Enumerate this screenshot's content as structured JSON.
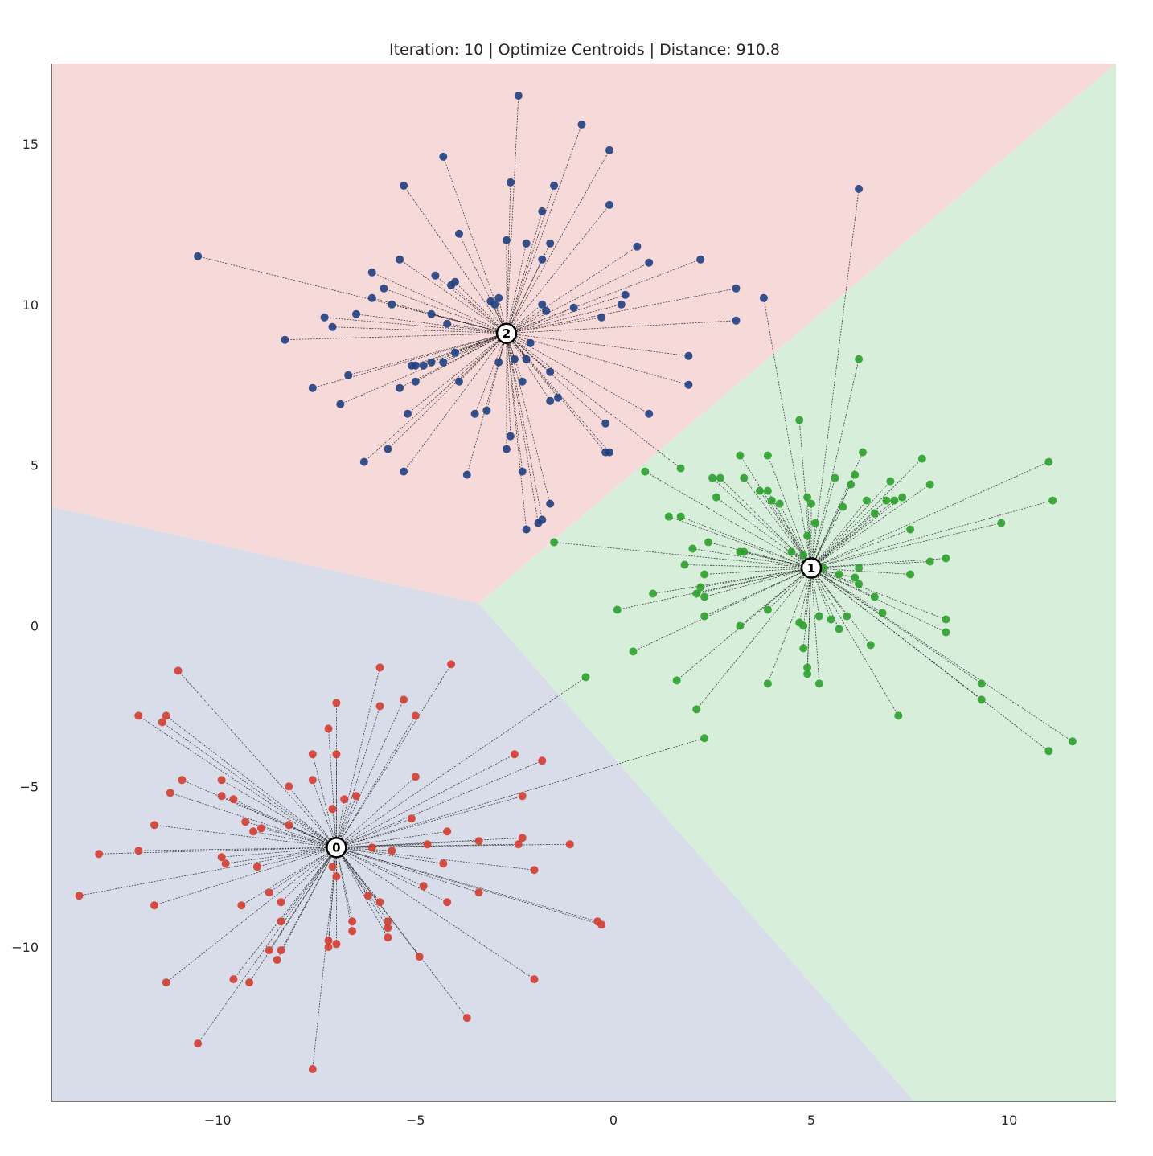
{
  "chart_data": {
    "type": "scatter",
    "title": "Iteration: 10 | Optimize Centroids | Distance: 910.8",
    "xlabel": "",
    "ylabel": "",
    "xlim": [
      -14.2,
      12.7
    ],
    "ylim": [
      -14.8,
      17.5
    ],
    "xticks": [
      -10,
      -5,
      0,
      5,
      10
    ],
    "yticks": [
      -10,
      -5,
      0,
      5,
      10,
      15
    ],
    "xtick_labels": [
      "−10",
      "−5",
      "0",
      "5",
      "10"
    ],
    "ytick_labels": [
      "−10",
      "−5",
      "0",
      "5",
      "10",
      "15"
    ],
    "grid": false,
    "colors": {
      "cluster_0": "#d43d33",
      "cluster_1": "#2ca02c",
      "cluster_2": "#1f3f7f",
      "region_0": "#d8dde9",
      "region_1": "#d7eedb",
      "region_2": "#f6dada",
      "line": "#222222"
    },
    "voronoi_regions": [
      {
        "cluster": 0,
        "polygon": [
          [
            -14.2,
            3.7
          ],
          [
            -3.4,
            0.7
          ],
          [
            7.6,
            -14.8
          ],
          [
            -14.2,
            -14.8
          ]
        ]
      },
      {
        "cluster": 1,
        "polygon": [
          [
            -3.4,
            0.7
          ],
          [
            12.7,
            17.5
          ],
          [
            12.7,
            -14.8
          ],
          [
            7.6,
            -14.8
          ]
        ]
      },
      {
        "cluster": 2,
        "polygon": [
          [
            -14.2,
            17.5
          ],
          [
            12.7,
            17.5
          ],
          [
            -3.4,
            0.7
          ],
          [
            -14.2,
            3.7
          ]
        ]
      }
    ],
    "centroids": [
      {
        "label": "0",
        "x": -7.0,
        "y": -6.9
      },
      {
        "label": "1",
        "x": 5.0,
        "y": 1.8
      },
      {
        "label": "2",
        "x": -2.7,
        "y": 9.1
      }
    ],
    "series": [
      {
        "cluster": 0,
        "points": [
          [
            -11.0,
            -1.4
          ],
          [
            -12.0,
            -2.8
          ],
          [
            -11.3,
            -2.8
          ],
          [
            -11.4,
            -3.0
          ],
          [
            -13.0,
            -7.1
          ],
          [
            -12.0,
            -7.0
          ],
          [
            -13.5,
            -8.4
          ],
          [
            -11.6,
            -8.7
          ],
          [
            -11.6,
            -6.2
          ],
          [
            -11.2,
            -5.2
          ],
          [
            -10.9,
            -4.8
          ],
          [
            -9.9,
            -4.8
          ],
          [
            -9.9,
            -5.3
          ],
          [
            -9.6,
            -5.4
          ],
          [
            -9.3,
            -6.1
          ],
          [
            -9.1,
            -6.4
          ],
          [
            -8.9,
            -6.3
          ],
          [
            -8.2,
            -5.0
          ],
          [
            -8.2,
            -6.2
          ],
          [
            -9.9,
            -7.2
          ],
          [
            -9.8,
            -7.4
          ],
          [
            -9.0,
            -7.5
          ],
          [
            -8.7,
            -8.3
          ],
          [
            -8.4,
            -8.6
          ],
          [
            -9.4,
            -8.7
          ],
          [
            -8.4,
            -9.2
          ],
          [
            -8.7,
            -10.1
          ],
          [
            -8.4,
            -10.1
          ],
          [
            -8.5,
            -10.4
          ],
          [
            -9.2,
            -11.1
          ],
          [
            -9.6,
            -11.0
          ],
          [
            -11.3,
            -11.1
          ],
          [
            -10.5,
            -13.0
          ],
          [
            -7.6,
            -13.8
          ],
          [
            -7.6,
            -4.0
          ],
          [
            -7.6,
            -4.8
          ],
          [
            -7.2,
            -3.2
          ],
          [
            -7.0,
            -2.4
          ],
          [
            -7.0,
            -4.0
          ],
          [
            -7.1,
            -5.7
          ],
          [
            -6.8,
            -5.4
          ],
          [
            -6.5,
            -5.3
          ],
          [
            -7.1,
            -7.5
          ],
          [
            -7.0,
            -7.8
          ],
          [
            -7.0,
            -9.9
          ],
          [
            -7.2,
            -9.8
          ],
          [
            -7.2,
            -10.0
          ],
          [
            -6.6,
            -9.2
          ],
          [
            -6.6,
            -9.5
          ],
          [
            -5.7,
            -9.2
          ],
          [
            -5.7,
            -9.4
          ],
          [
            -5.7,
            -9.7
          ],
          [
            -6.2,
            -8.4
          ],
          [
            -5.9,
            -8.6
          ],
          [
            -6.1,
            -6.9
          ],
          [
            -5.6,
            -7.0
          ],
          [
            -5.9,
            -1.3
          ],
          [
            -5.9,
            -2.5
          ],
          [
            -5.3,
            -2.3
          ],
          [
            -5.0,
            -2.8
          ],
          [
            -5.0,
            -4.7
          ],
          [
            -5.1,
            -6.0
          ],
          [
            -4.7,
            -6.8
          ],
          [
            -4.2,
            -6.4
          ],
          [
            -4.2,
            -8.6
          ],
          [
            -4.8,
            -8.1
          ],
          [
            -4.3,
            -7.4
          ],
          [
            -4.9,
            -10.3
          ],
          [
            -3.7,
            -12.2
          ],
          [
            -4.1,
            -1.2
          ],
          [
            -2.5,
            -4.0
          ],
          [
            -1.8,
            -4.2
          ],
          [
            -2.3,
            -5.3
          ],
          [
            -3.4,
            -6.7
          ],
          [
            -2.3,
            -6.6
          ],
          [
            -2.4,
            -6.8
          ],
          [
            -1.1,
            -6.8
          ],
          [
            -2.0,
            -7.6
          ],
          [
            -3.4,
            -8.3
          ],
          [
            -2.0,
            -11.0
          ],
          [
            -0.4,
            -9.2
          ],
          [
            -0.3,
            -9.3
          ],
          [
            -0.7,
            -1.6
          ],
          [
            2.3,
            -3.5
          ]
        ]
      },
      {
        "cluster": 1,
        "points": [
          [
            4.7,
            6.4
          ],
          [
            3.2,
            5.3
          ],
          [
            3.9,
            5.3
          ],
          [
            2.7,
            4.6
          ],
          [
            2.5,
            4.6
          ],
          [
            3.3,
            4.6
          ],
          [
            3.7,
            4.2
          ],
          [
            3.9,
            4.2
          ],
          [
            4.0,
            3.9
          ],
          [
            4.2,
            3.8
          ],
          [
            2.6,
            4.0
          ],
          [
            4.9,
            4.0
          ],
          [
            5.0,
            3.8
          ],
          [
            5.6,
            4.6
          ],
          [
            6.1,
            4.7
          ],
          [
            6.3,
            5.4
          ],
          [
            6.0,
            4.4
          ],
          [
            5.8,
            3.7
          ],
          [
            6.4,
            3.9
          ],
          [
            6.6,
            3.5
          ],
          [
            6.9,
            3.9
          ],
          [
            7.1,
            3.9
          ],
          [
            7.3,
            4.0
          ],
          [
            7.0,
            4.5
          ],
          [
            7.5,
            3.0
          ],
          [
            7.8,
            5.2
          ],
          [
            8.0,
            4.4
          ],
          [
            11.0,
            5.1
          ],
          [
            11.1,
            3.9
          ],
          [
            9.8,
            3.2
          ],
          [
            8.0,
            2.0
          ],
          [
            8.4,
            2.1
          ],
          [
            7.5,
            1.6
          ],
          [
            6.1,
            1.5
          ],
          [
            6.2,
            1.8
          ],
          [
            5.3,
            1.8
          ],
          [
            5.7,
            1.6
          ],
          [
            6.2,
            1.3
          ],
          [
            6.6,
            0.9
          ],
          [
            6.8,
            0.4
          ],
          [
            6.5,
            -0.6
          ],
          [
            7.2,
            -2.8
          ],
          [
            8.4,
            0.2
          ],
          [
            8.4,
            -0.2
          ],
          [
            9.3,
            -1.8
          ],
          [
            9.3,
            -2.3
          ],
          [
            11.0,
            -3.9
          ],
          [
            11.6,
            -3.6
          ],
          [
            5.2,
            0.3
          ],
          [
            5.5,
            0.2
          ],
          [
            5.7,
            -0.1
          ],
          [
            5.9,
            0.3
          ],
          [
            5.2,
            -1.8
          ],
          [
            4.8,
            -0.7
          ],
          [
            4.9,
            -1.3
          ],
          [
            4.9,
            -1.5
          ],
          [
            4.8,
            0.0
          ],
          [
            4.7,
            0.1
          ],
          [
            3.9,
            -1.8
          ],
          [
            3.9,
            0.5
          ],
          [
            3.2,
            0.0
          ],
          [
            2.3,
            0.3
          ],
          [
            2.1,
            -2.6
          ],
          [
            1.6,
            -1.7
          ],
          [
            2.3,
            0.9
          ],
          [
            2.2,
            1.2
          ],
          [
            2.3,
            1.6
          ],
          [
            1.8,
            1.9
          ],
          [
            2.0,
            2.4
          ],
          [
            2.4,
            2.6
          ],
          [
            3.2,
            2.3
          ],
          [
            3.3,
            2.3
          ],
          [
            1.4,
            3.4
          ],
          [
            1.7,
            3.4
          ],
          [
            0.8,
            4.8
          ],
          [
            -1.5,
            2.6
          ],
          [
            0.1,
            0.5
          ],
          [
            1.0,
            1.0
          ],
          [
            0.5,
            -0.8
          ],
          [
            2.1,
            1.0
          ],
          [
            4.5,
            2.3
          ],
          [
            4.8,
            2.2
          ],
          [
            4.9,
            2.8
          ],
          [
            5.1,
            3.2
          ],
          [
            6.2,
            8.3
          ],
          [
            3.8,
            10.2
          ],
          [
            6.2,
            13.6
          ]
        ]
      },
      {
        "cluster": 2,
        "points": [
          [
            -2.4,
            16.5
          ],
          [
            -0.8,
            15.6
          ],
          [
            -4.3,
            14.6
          ],
          [
            -2.6,
            13.8
          ],
          [
            -0.1,
            14.8
          ],
          [
            -5.3,
            13.7
          ],
          [
            -1.5,
            13.7
          ],
          [
            -0.1,
            13.1
          ],
          [
            -1.8,
            12.9
          ],
          [
            -3.9,
            12.2
          ],
          [
            -2.7,
            12.0
          ],
          [
            -2.2,
            11.9
          ],
          [
            -1.6,
            11.9
          ],
          [
            0.6,
            11.8
          ],
          [
            0.9,
            11.3
          ],
          [
            2.2,
            11.4
          ],
          [
            -1.8,
            11.4
          ],
          [
            -5.4,
            11.4
          ],
          [
            -6.1,
            11.0
          ],
          [
            -4.5,
            10.9
          ],
          [
            -4.1,
            10.6
          ],
          [
            -4.0,
            10.7
          ],
          [
            -5.8,
            10.5
          ],
          [
            -6.1,
            10.2
          ],
          [
            -5.6,
            10.0
          ],
          [
            -3.1,
            10.1
          ],
          [
            -3.0,
            10.0
          ],
          [
            -2.9,
            10.2
          ],
          [
            -1.8,
            10.0
          ],
          [
            -1.7,
            9.8
          ],
          [
            -1.0,
            9.9
          ],
          [
            0.2,
            10.0
          ],
          [
            0.3,
            10.3
          ],
          [
            3.1,
            10.5
          ],
          [
            3.1,
            9.5
          ],
          [
            -0.3,
            9.6
          ],
          [
            -4.6,
            9.7
          ],
          [
            -6.5,
            9.7
          ],
          [
            -7.3,
            9.6
          ],
          [
            -7.1,
            9.3
          ],
          [
            -8.3,
            8.9
          ],
          [
            -10.5,
            11.5
          ],
          [
            -4.2,
            9.4
          ],
          [
            -4.0,
            8.5
          ],
          [
            -4.3,
            8.2
          ],
          [
            -4.6,
            8.2
          ],
          [
            -4.8,
            8.1
          ],
          [
            -5.0,
            8.1
          ],
          [
            -5.1,
            8.1
          ],
          [
            -5.0,
            7.6
          ],
          [
            -6.7,
            7.8
          ],
          [
            -5.4,
            7.4
          ],
          [
            -6.9,
            6.9
          ],
          [
            -7.6,
            7.4
          ],
          [
            -3.9,
            7.6
          ],
          [
            -5.2,
            6.6
          ],
          [
            -3.5,
            6.6
          ],
          [
            -3.2,
            6.7
          ],
          [
            -2.9,
            8.2
          ],
          [
            -2.5,
            8.3
          ],
          [
            -2.2,
            8.3
          ],
          [
            -2.3,
            7.6
          ],
          [
            -1.6,
            7.9
          ],
          [
            -1.4,
            7.1
          ],
          [
            -1.6,
            7.0
          ],
          [
            -2.1,
            8.8
          ],
          [
            -0.2,
            6.3
          ],
          [
            0.9,
            6.6
          ],
          [
            1.9,
            8.4
          ],
          [
            1.9,
            7.5
          ],
          [
            -0.1,
            5.4
          ],
          [
            -0.2,
            5.4
          ],
          [
            -2.6,
            5.9
          ],
          [
            -2.7,
            5.5
          ],
          [
            -2.3,
            4.8
          ],
          [
            -5.7,
            5.5
          ],
          [
            -6.3,
            5.1
          ],
          [
            -5.3,
            4.8
          ],
          [
            -3.7,
            4.7
          ],
          [
            -1.6,
            3.8
          ],
          [
            -1.8,
            3.3
          ],
          [
            -1.9,
            3.2
          ],
          [
            -2.2,
            3.0
          ],
          [
            1.7,
            4.9
          ]
        ]
      }
    ]
  }
}
